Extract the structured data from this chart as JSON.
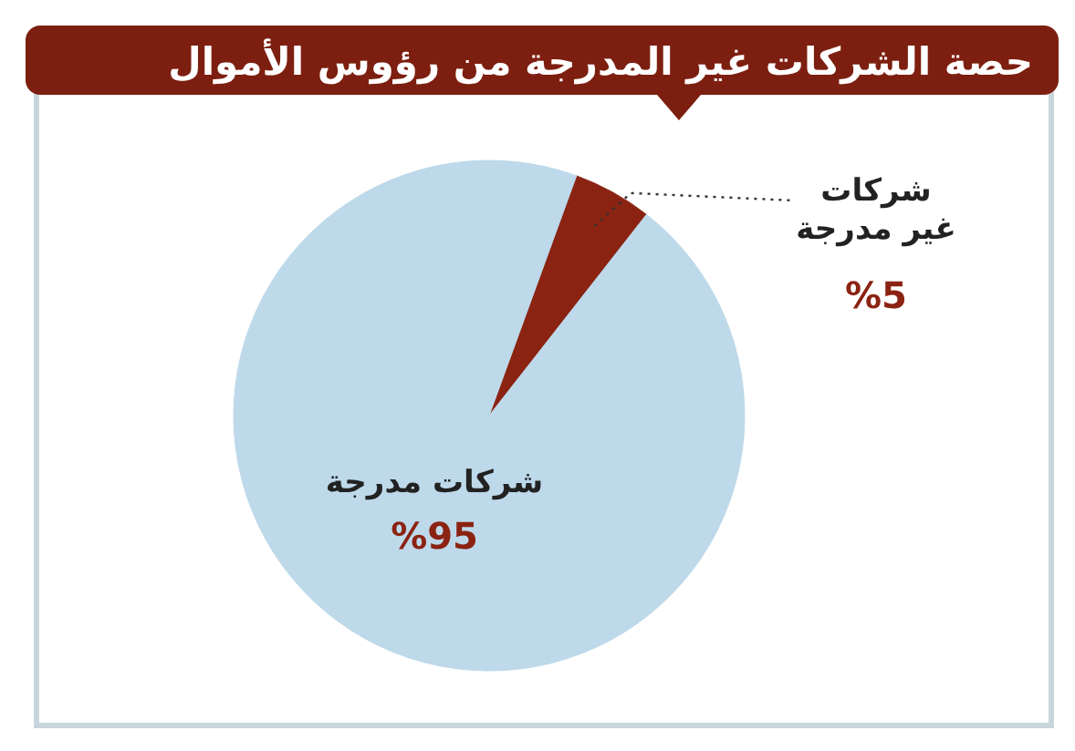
{
  "chart_data": {
    "type": "pie",
    "title": "حصة الشركات غير المدرجة من رؤوس الأموال",
    "categories": [
      "شركات غير مدرجة",
      "شركات مدرجة"
    ],
    "values": [
      5,
      95
    ],
    "colors": [
      "#8b2312",
      "#bdd9ea"
    ],
    "value_labels": [
      "%5",
      "%95"
    ]
  }
}
